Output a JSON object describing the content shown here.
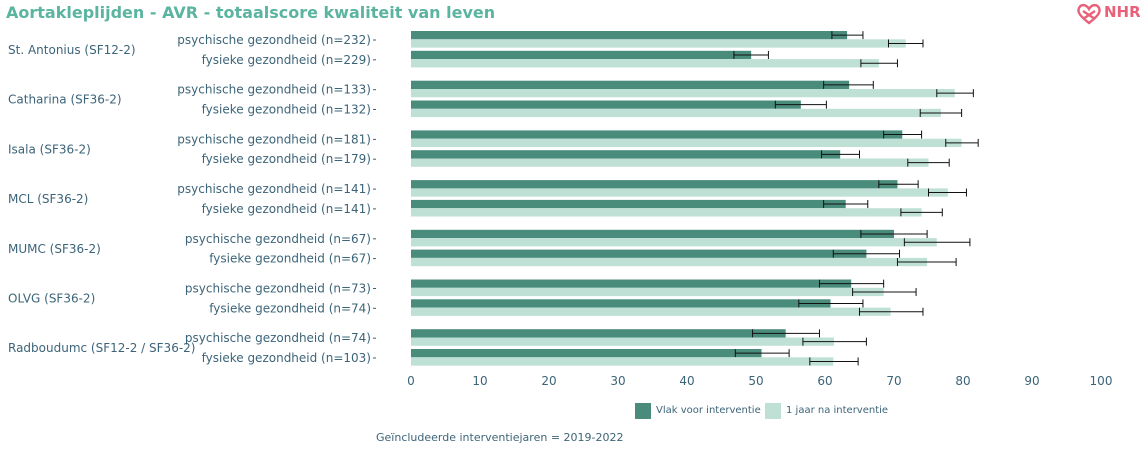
{
  "header": {
    "title": "Aortakleplijden - AVR - totaalscore kwaliteit van leven",
    "logo_text": "NHR"
  },
  "footnote": "Geïncludeerde interventiejaren = 2019-2022",
  "colors": {
    "before": "#4a8c7b",
    "after": "#bfe0d5",
    "text": "#3c6478",
    "title": "#5ab4a0",
    "logo": "#e8617a",
    "axis": "#9aa8ae"
  },
  "chart_data": {
    "type": "bar",
    "orientation": "horizontal",
    "title": "Aortakleplijden - AVR - totaalscore kwaliteit van leven",
    "xlim": [
      0,
      100
    ],
    "xticks": [
      "0",
      "10",
      "20",
      "30",
      "40",
      "50",
      "60",
      "70",
      "80",
      "90",
      "100"
    ],
    "legend": {
      "position": "bottom",
      "items": [
        "Vlak voor interventie",
        "1 jaar na interventie"
      ]
    },
    "groups": [
      {
        "hospital": "St. Antonius (SF12-2)",
        "rows": [
          {
            "label": "psychische gezondheid (n=232)",
            "before": 63.2,
            "before_ci": [
              61.0,
              65.5
            ],
            "after": 71.7,
            "after_ci": [
              69.2,
              74.2
            ]
          },
          {
            "label": "fysieke gezondheid (n=229)",
            "before": 49.3,
            "before_ci": [
              46.8,
              51.8
            ],
            "after": 67.8,
            "after_ci": [
              65.2,
              70.5
            ]
          }
        ]
      },
      {
        "hospital": "Catharina (SF36-2)",
        "rows": [
          {
            "label": "psychische gezondheid (n=133)",
            "before": 63.5,
            "before_ci": [
              59.8,
              67.0
            ],
            "after": 78.8,
            "after_ci": [
              76.2,
              81.5
            ]
          },
          {
            "label": "fysieke gezondheid (n=132)",
            "before": 56.5,
            "before_ci": [
              52.8,
              60.2
            ],
            "after": 76.8,
            "after_ci": [
              73.8,
              79.8
            ]
          }
        ]
      },
      {
        "hospital": "Isala (SF36-2)",
        "rows": [
          {
            "label": "psychische gezondheid (n=181)",
            "before": 71.2,
            "before_ci": [
              68.5,
              74.0
            ],
            "after": 79.8,
            "after_ci": [
              77.5,
              82.2
            ]
          },
          {
            "label": "fysieke gezondheid (n=179)",
            "before": 62.2,
            "before_ci": [
              59.5,
              65.0
            ],
            "after": 75.0,
            "after_ci": [
              72.0,
              78.0
            ]
          }
        ]
      },
      {
        "hospital": "MCL (SF36-2)",
        "rows": [
          {
            "label": "psychische gezondheid (n=141)",
            "before": 70.5,
            "before_ci": [
              67.8,
              73.5
            ],
            "after": 77.8,
            "after_ci": [
              75.0,
              80.5
            ]
          },
          {
            "label": "fysieke gezondheid (n=141)",
            "before": 63.0,
            "before_ci": [
              59.8,
              66.2
            ],
            "after": 74.0,
            "after_ci": [
              71.0,
              77.0
            ]
          }
        ]
      },
      {
        "hospital": "MUMC (SF36-2)",
        "rows": [
          {
            "label": "psychische gezondheid (n=67)",
            "before": 70.0,
            "before_ci": [
              65.2,
              74.8
            ],
            "after": 76.2,
            "after_ci": [
              71.5,
              81.0
            ]
          },
          {
            "label": "fysieke gezondheid (n=67)",
            "before": 66.0,
            "before_ci": [
              61.2,
              70.8
            ],
            "after": 74.8,
            "after_ci": [
              70.5,
              79.0
            ]
          }
        ]
      },
      {
        "hospital": "OLVG (SF36-2)",
        "rows": [
          {
            "label": "psychische gezondheid (n=73)",
            "before": 63.8,
            "before_ci": [
              59.2,
              68.5
            ],
            "after": 68.5,
            "after_ci": [
              64.0,
              73.2
            ]
          },
          {
            "label": "fysieke gezondheid (n=74)",
            "before": 60.8,
            "before_ci": [
              56.2,
              65.5
            ],
            "after": 69.5,
            "after_ci": [
              65.0,
              74.2
            ]
          }
        ]
      },
      {
        "hospital": "Radboudumc (SF12-2 / SF36-2)",
        "rows": [
          {
            "label": "psychische gezondheid (n=74)",
            "before": 54.3,
            "before_ci": [
              49.5,
              59.2
            ],
            "after": 61.3,
            "after_ci": [
              56.8,
              66.0
            ]
          },
          {
            "label": "fysieke gezondheid (n=103)",
            "before": 50.8,
            "before_ci": [
              47.0,
              54.8
            ],
            "after": 61.2,
            "after_ci": [
              57.8,
              64.8
            ]
          }
        ]
      }
    ]
  }
}
